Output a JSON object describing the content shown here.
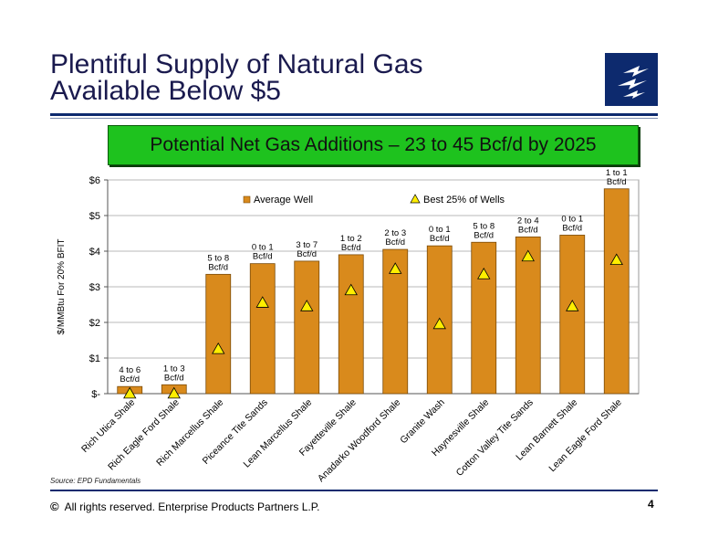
{
  "slide": {
    "title_line1": "Plentiful Supply of Natural Gas",
    "title_line2": "Available Below $5",
    "banner": "Potential Net Gas Additions – 23 to 45 Bcf/d by 2025",
    "source": "Source:  EPD Fundamentals",
    "footer": "All rights reserved. Enterprise Products Partners L.P.",
    "copyright_symbol": "©",
    "page_number": "4",
    "colors": {
      "navy": "#0d2a6e",
      "banner_green": "#1ec21e",
      "bar": "#d98a1c",
      "triangle": "#ffee00"
    }
  },
  "chart_data": {
    "type": "bar",
    "ylabel": "$/MMBtu For 20% BFIT",
    "ylim": [
      0,
      6
    ],
    "y_ticks": [
      0,
      1,
      2,
      3,
      4,
      5,
      6
    ],
    "y_tick_labels": [
      "$-",
      "$1",
      "$2",
      "$3",
      "$4",
      "$5",
      "$6"
    ],
    "grid": true,
    "legend_position": "top",
    "categories": [
      "Rich Utica Shale",
      "Rich Eagle Ford Shale",
      "Rich Marcellus Shale",
      "Piceance Tite Sands",
      "Lean Marcellus Shale",
      "Fayetteville Shale",
      "Anadarko Woodford Shale",
      "Granite Wash",
      "Haynesville Shale",
      "Cotton Valley Tite Sands",
      "Lean Barnett Shale",
      "Lean Eagle Ford Shale"
    ],
    "series": [
      {
        "name": "Average Well",
        "kind": "bar",
        "values": [
          0.2,
          0.25,
          3.35,
          3.65,
          3.72,
          3.9,
          4.05,
          4.15,
          4.25,
          4.4,
          4.45,
          5.75
        ]
      },
      {
        "name": "Best 25% of Wells",
        "kind": "marker-triangle",
        "values": [
          0.0,
          0.0,
          1.25,
          2.55,
          2.45,
          2.9,
          3.5,
          1.95,
          3.35,
          3.85,
          2.45,
          3.75
        ]
      }
    ],
    "data_labels": [
      [
        "4 to 6",
        "Bcf/d"
      ],
      [
        "1 to 3",
        "Bcf/d"
      ],
      [
        "5 to 8",
        "Bcf/d"
      ],
      [
        "0 to 1",
        "Bcf/d"
      ],
      [
        "3 to 7",
        "Bcf/d"
      ],
      [
        "1 to 2",
        "Bcf/d"
      ],
      [
        "2 to 3",
        "Bcf/d"
      ],
      [
        "0 to 1",
        "Bcf/d"
      ],
      [
        "5 to 8",
        "Bcf/d"
      ],
      [
        "2 to 4",
        "Bcf/d"
      ],
      [
        "0 to 1",
        "Bcf/d"
      ],
      [
        "1 to 1",
        "Bcf/d"
      ]
    ]
  }
}
